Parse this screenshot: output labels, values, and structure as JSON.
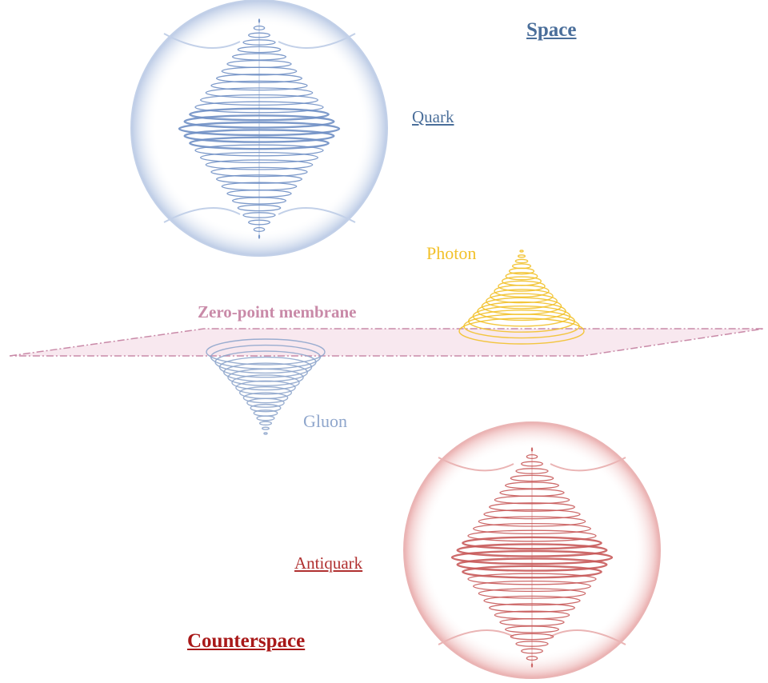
{
  "labels": {
    "space": "Space",
    "quark": "Quark",
    "photon": "Photon",
    "membrane": "Zero-point membrane",
    "gluon": "Gluon",
    "antiquark": "Antiquark",
    "counterspace": "Counterspace"
  },
  "colors": {
    "space_blue": "#4a6e9a",
    "quark_blue": "#6f8fc4",
    "quark_shell": "#b8c8e4",
    "photon_gold": "#f2c12a",
    "membrane_pink": "#c98aa8",
    "membrane_fill": "#f7e4ec",
    "gluon_blue": "#8fa6cc",
    "antiquark_red": "#b03030",
    "antiquark_shell": "#e8a6a6",
    "counterspace_red": "#a81818"
  }
}
